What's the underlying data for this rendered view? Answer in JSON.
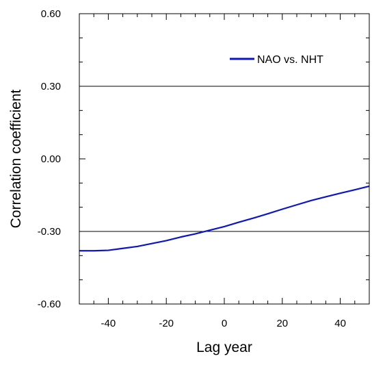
{
  "chart_data": {
    "type": "line",
    "title": "",
    "xlabel": "Lag year",
    "ylabel": "Correlation coefficient",
    "xlim": [
      -50,
      50
    ],
    "ylim": [
      -0.6,
      0.6
    ],
    "x_ticks": [
      {
        "value": -40,
        "label": "-40"
      },
      {
        "value": -20,
        "label": "-20"
      },
      {
        "value": 0,
        "label": "0"
      },
      {
        "value": 20,
        "label": "20"
      },
      {
        "value": 40,
        "label": "40"
      }
    ],
    "x_minor_step": 5,
    "y_ticks": [
      {
        "value": -0.6,
        "label": "-0.60"
      },
      {
        "value": -0.3,
        "label": "-0.30"
      },
      {
        "value": 0.0,
        "label": "0.00"
      },
      {
        "value": 0.3,
        "label": "0.30"
      },
      {
        "value": 0.6,
        "label": "0.60"
      }
    ],
    "y_minor_step": 0.1,
    "reference_lines": [
      -0.3,
      0.3
    ],
    "legend": {
      "position": "top-right",
      "entries": [
        "NAO vs. NHT"
      ]
    },
    "series": [
      {
        "name": "NAO vs. NHT",
        "color": "#0a14c8",
        "x": [
          -50,
          -45,
          -40,
          -35,
          -30,
          -25,
          -20,
          -15,
          -10,
          -5,
          0,
          5,
          10,
          15,
          20,
          25,
          30,
          35,
          40,
          45,
          50
        ],
        "y": [
          -0.38,
          -0.38,
          -0.378,
          -0.37,
          -0.362,
          -0.35,
          -0.338,
          -0.323,
          -0.31,
          -0.295,
          -0.28,
          -0.262,
          -0.245,
          -0.227,
          -0.208,
          -0.19,
          -0.172,
          -0.157,
          -0.142,
          -0.128,
          -0.113
        ]
      }
    ]
  }
}
